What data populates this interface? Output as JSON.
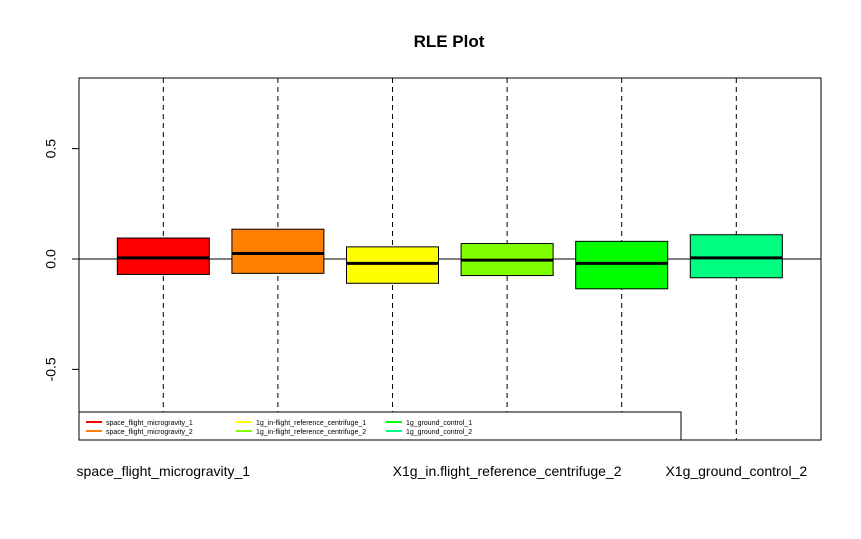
{
  "chart_data": {
    "type": "box",
    "title": "RLE Plot",
    "xlabel": "",
    "ylabel": "",
    "ylim": [
      -0.82,
      0.82
    ],
    "yticks": [
      -0.5,
      0.0,
      0.5
    ],
    "ytick_labels": [
      "-0.5",
      "0.0",
      "0.5"
    ],
    "reference_line": 0,
    "grid": "dashed vertical lines at each category",
    "categories": [
      "space_flight_microgravity_1",
      "space_flight_microgravity_2",
      "X1g_in.flight_reference_centrifuge_1",
      "X1g_in.flight_reference_centrifuge_2",
      "X1g_ground_control_1",
      "X1g_ground_control_2"
    ],
    "shown_xtick_labels": [
      "space_flight_microgravity_1",
      "",
      "",
      "X1g_in.flight_reference_centrifuge_2",
      "",
      "X1g_ground_control_2"
    ],
    "boxes": [
      {
        "q1": -0.07,
        "median": 0.005,
        "q3": 0.095,
        "color": "#FF0000"
      },
      {
        "q1": -0.065,
        "median": 0.025,
        "q3": 0.135,
        "color": "#FF8000"
      },
      {
        "q1": -0.11,
        "median": -0.02,
        "q3": 0.055,
        "color": "#FFFF00"
      },
      {
        "q1": -0.075,
        "median": -0.005,
        "q3": 0.07,
        "color": "#80FF00"
      },
      {
        "q1": -0.135,
        "median": -0.02,
        "q3": 0.08,
        "color": "#00FF00"
      },
      {
        "q1": -0.085,
        "median": 0.005,
        "q3": 0.11,
        "color": "#00FF80"
      }
    ],
    "legend": {
      "position": "bottom-left",
      "entries": [
        {
          "label": "space_flight_microgravity_1",
          "color": "#FF0000"
        },
        {
          "label": "space_flight_microgravity_2",
          "color": "#FF8000"
        },
        {
          "label": "1g_in-flight_reference_centrifuge_1",
          "color": "#FFFF00"
        },
        {
          "label": "1g_in-flight_reference_centrifuge_2",
          "color": "#80FF00"
        },
        {
          "label": "1g_ground_control_1",
          "color": "#00FF00"
        },
        {
          "label": "1g_ground_control_2",
          "color": "#00FF80"
        }
      ]
    }
  }
}
